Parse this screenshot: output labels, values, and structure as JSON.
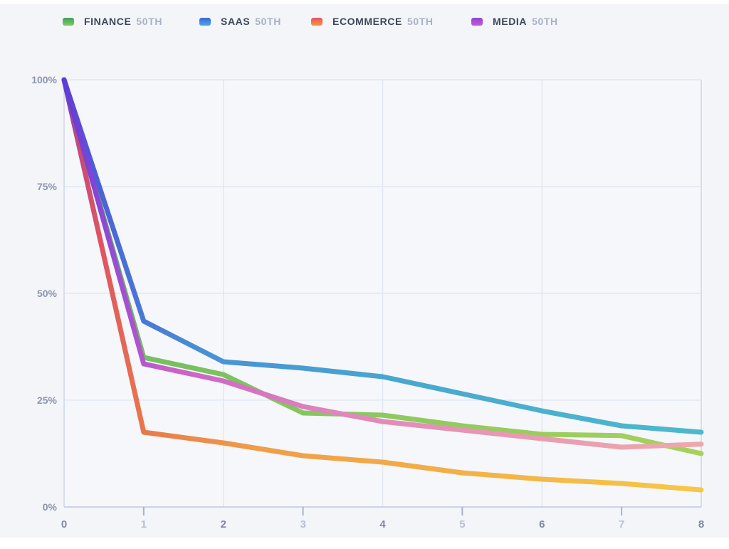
{
  "panel": {
    "page_background": "#ffffff",
    "background": "#f3f5f9",
    "plot_background": "#f5f7fa"
  },
  "legend": {
    "name_color": "#3e4759",
    "percentile_color": "#a9b1c4",
    "items": [
      {
        "name": "FINANCE",
        "percentile": "50TH",
        "swatch_top": "#3ba05f",
        "swatch_bottom": "#85cb5f"
      },
      {
        "name": "SAAS",
        "percentile": "50TH",
        "swatch_top": "#3c65d9",
        "swatch_bottom": "#47a9e0"
      },
      {
        "name": "ECOMMERCE",
        "percentile": "50TH",
        "swatch_top": "#ea4f63",
        "swatch_bottom": "#f09a41"
      },
      {
        "name": "MEDIA",
        "percentile": "50TH",
        "swatch_top": "#8b45dc",
        "swatch_bottom": "#cb59ce"
      }
    ]
  },
  "chart_data": {
    "type": "line",
    "title": "",
    "xlabel": "",
    "ylabel": "",
    "grid": true,
    "legend_position": "top",
    "xlim": [
      0,
      8
    ],
    "ylim": [
      0,
      100
    ],
    "x": [
      0,
      1,
      2,
      3,
      4,
      5,
      6,
      7,
      8
    ],
    "series": [
      {
        "name": "FINANCE 50TH",
        "values": [
          100,
          35,
          31,
          22,
          21.5,
          19,
          17,
          16.7,
          12.5
        ],
        "gradient": [
          [
            0,
            "#5244d6"
          ],
          [
            0.05,
            "#4f9e63"
          ],
          [
            0.13,
            "#74bf60"
          ],
          [
            0.5,
            "#8cc95e"
          ],
          [
            1,
            "#a7d15d"
          ]
        ]
      },
      {
        "name": "SAAS 50TH",
        "values": [
          100,
          43.5,
          34,
          32.5,
          30.5,
          26.5,
          22.5,
          19,
          17.5
        ],
        "gradient": [
          [
            0,
            "#5546d8"
          ],
          [
            0.09,
            "#4a6ed6"
          ],
          [
            0.22,
            "#4892d4"
          ],
          [
            0.55,
            "#49a8cf"
          ],
          [
            1,
            "#4cb9cd"
          ]
        ]
      },
      {
        "name": "ECOMMERCE 50TH",
        "values": [
          100,
          17.5,
          15,
          12,
          10.5,
          8,
          6.5,
          5.5,
          4
        ],
        "gradient": [
          [
            0,
            "#7a3fc8"
          ],
          [
            0.02,
            "#c4497c"
          ],
          [
            0.06,
            "#e05560"
          ],
          [
            0.13,
            "#ea7a4a"
          ],
          [
            0.3,
            "#f09d47"
          ],
          [
            1,
            "#f6c846"
          ]
        ]
      },
      {
        "name": "MEDIA 50TH",
        "values": [
          100,
          33.5,
          29.5,
          23.5,
          20,
          18,
          16,
          14,
          14.7
        ],
        "gradient": [
          [
            0,
            "#5b3fd4"
          ],
          [
            0.06,
            "#8f46d6"
          ],
          [
            0.16,
            "#c95fc9"
          ],
          [
            0.42,
            "#e085bc"
          ],
          [
            0.75,
            "#ea9cb2"
          ],
          [
            1,
            "#eca9ac"
          ]
        ]
      }
    ],
    "y_ticks": [
      {
        "label": "100%",
        "value": 100
      },
      {
        "label": "75%",
        "value": 75
      },
      {
        "label": "50%",
        "value": 50
      },
      {
        "label": "25%",
        "value": 25
      },
      {
        "label": "0%",
        "value": 0
      }
    ],
    "x_ticks": [
      {
        "label": "0",
        "value": 0,
        "strong": true
      },
      {
        "label": "1",
        "value": 1,
        "strong": false
      },
      {
        "label": "2",
        "value": 2,
        "strong": true
      },
      {
        "label": "3",
        "value": 3,
        "strong": false
      },
      {
        "label": "4",
        "value": 4,
        "strong": true
      },
      {
        "label": "5",
        "value": 5,
        "strong": false
      },
      {
        "label": "6",
        "value": 6,
        "strong": true
      },
      {
        "label": "7",
        "value": 7,
        "strong": false
      },
      {
        "label": "8",
        "value": 8,
        "strong": true
      }
    ],
    "x_gridlines": [
      2,
      4,
      6
    ],
    "x_minor_ticks": [
      1,
      3,
      5,
      7
    ]
  },
  "axes_style": {
    "grid_color": "#e2e7f1",
    "border_color": "#d8deea",
    "axis_color": "#ccd4e3",
    "tick_color": "#aab3c8",
    "y_label_color": "#8d95ae",
    "x_label_strong_color": "#7f87a2",
    "x_label_muted_color": "#b7bed3"
  }
}
